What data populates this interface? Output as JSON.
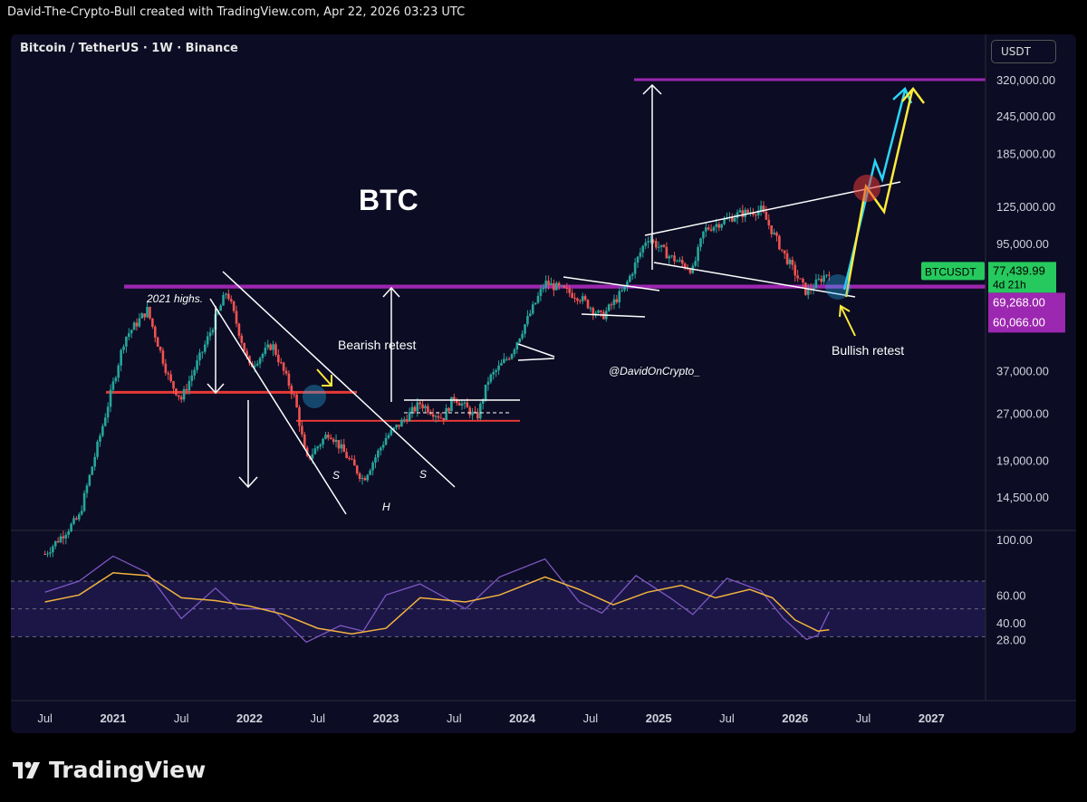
{
  "header": {
    "credit": "David-The-Crypto-Bull created with TradingView.com, Apr 22, 2026 03:23 UTC"
  },
  "chart_header": {
    "symbol": "Bitcoin / TetherUS · 1W · Binance",
    "unit_button": "USDT"
  },
  "footer": {
    "brand": "TradingView"
  },
  "colors": {
    "background": "#0c0c24",
    "purple": "#9c27b0",
    "red": "#e53935",
    "yellow": "#ffeb3b",
    "cyan": "#29d6f5",
    "up": "#26a69a",
    "down": "#ef5350",
    "rsi": "#7e57c2",
    "rsi_ma": "#f2b33d"
  },
  "chart_data": [
    {
      "type": "candlestick",
      "series_name": "BTCUSDT",
      "scale": "log",
      "y_ticks": [
        320000,
        245000,
        185000,
        125000,
        95000,
        37000,
        27000,
        19000,
        14500
      ],
      "y_tick_labels": [
        "320,000.00",
        "245,000.00",
        "185,000.00",
        "125,000.00",
        "95,000.00",
        "37,000.00",
        "27,000.00",
        "19,000.00",
        "14,500.00"
      ],
      "x_tick_labels": [
        "Jul",
        "2021",
        "Jul",
        "2022",
        "Jul",
        "2023",
        "Jul",
        "2024",
        "Jul",
        "2025",
        "Jul",
        "2026",
        "Jul",
        "2027"
      ],
      "current_price": {
        "label": "BTCUSDT",
        "value": "77,439.99",
        "countdown": "4d 21h"
      },
      "levels": [
        {
          "value": 69268,
          "label": "69,268.00"
        },
        {
          "value": 60066,
          "label": "60,066.00"
        },
        {
          "value": 320000
        },
        {
          "value": 31500
        },
        {
          "value": 25500
        }
      ],
      "annotations": {
        "title": "BTC",
        "highs": "2021 highs.",
        "bearish": "Bearish retest",
        "bullish": "Bullish retest",
        "handle": "@DavidOnCrypto_",
        "s1": "S",
        "h": "H",
        "s2": "S"
      },
      "weekly_close_path": [
        [
          "2020-07",
          9500
        ],
        [
          "2020-10",
          12500
        ],
        [
          "2020-12",
          24000
        ],
        [
          "2021-02",
          47000
        ],
        [
          "2021-04",
          58000
        ],
        [
          "2021-06",
          34000
        ],
        [
          "2021-07",
          30000
        ],
        [
          "2021-09",
          44000
        ],
        [
          "2021-11",
          67000
        ],
        [
          "2022-01",
          38000
        ],
        [
          "2022-03",
          45000
        ],
        [
          "2022-05",
          30000
        ],
        [
          "2022-06",
          19000
        ],
        [
          "2022-08",
          23500
        ],
        [
          "2022-11",
          16500
        ],
        [
          "2023-01",
          22500
        ],
        [
          "2023-04",
          29000
        ],
        [
          "2023-06",
          26000
        ],
        [
          "2023-07",
          30500
        ],
        [
          "2023-09",
          26000
        ],
        [
          "2023-10",
          34500
        ],
        [
          "2023-12",
          42000
        ],
        [
          "2024-03",
          71000
        ],
        [
          "2024-06",
          64000
        ],
        [
          "2024-08",
          55000
        ],
        [
          "2024-10",
          68000
        ],
        [
          "2024-12",
          100000
        ],
        [
          "2025-02",
          86000
        ],
        [
          "2025-04",
          78000
        ],
        [
          "2025-05",
          105000
        ],
        [
          "2025-08",
          118000
        ],
        [
          "2025-10",
          122000
        ],
        [
          "2025-12",
          88000
        ],
        [
          "2026-02",
          66000
        ],
        [
          "2026-04",
          77440
        ]
      ]
    },
    {
      "type": "line",
      "name": "RSI",
      "y_ticks": [
        100,
        60,
        40,
        28
      ],
      "y_tick_labels": [
        "100.00",
        "60.00",
        "40.00",
        "28.00"
      ],
      "bands": [
        70,
        50,
        30
      ],
      "rsi_path": [
        [
          "2020-07",
          62
        ],
        [
          "2020-10",
          70
        ],
        [
          "2021-01",
          88
        ],
        [
          "2021-04",
          76
        ],
        [
          "2021-07",
          43
        ],
        [
          "2021-10",
          65
        ],
        [
          "2021-12",
          50
        ],
        [
          "2022-03",
          50
        ],
        [
          "2022-06",
          26
        ],
        [
          "2022-09",
          38
        ],
        [
          "2022-11",
          34
        ],
        [
          "2023-01",
          60
        ],
        [
          "2023-04",
          68
        ],
        [
          "2023-08",
          50
        ],
        [
          "2023-11",
          73
        ],
        [
          "2024-03",
          86
        ],
        [
          "2024-06",
          55
        ],
        [
          "2024-08",
          47
        ],
        [
          "2024-11",
          74
        ],
        [
          "2025-02",
          58
        ],
        [
          "2025-04",
          46
        ],
        [
          "2025-07",
          72
        ],
        [
          "2025-10",
          63
        ],
        [
          "2025-12",
          43
        ],
        [
          "2026-02",
          28
        ],
        [
          "2026-03",
          31
        ],
        [
          "2026-04",
          48
        ]
      ],
      "ma_path": [
        [
          "2020-07",
          55
        ],
        [
          "2020-10",
          60
        ],
        [
          "2021-01",
          76
        ],
        [
          "2021-04",
          74
        ],
        [
          "2021-07",
          58
        ],
        [
          "2021-10",
          56
        ],
        [
          "2022-01",
          52
        ],
        [
          "2022-04",
          46
        ],
        [
          "2022-07",
          36
        ],
        [
          "2022-10",
          32
        ],
        [
          "2023-01",
          36
        ],
        [
          "2023-04",
          58
        ],
        [
          "2023-08",
          55
        ],
        [
          "2023-11",
          60
        ],
        [
          "2024-03",
          73
        ],
        [
          "2024-06",
          64
        ],
        [
          "2024-09",
          53
        ],
        [
          "2024-12",
          62
        ],
        [
          "2025-03",
          67
        ],
        [
          "2025-06",
          58
        ],
        [
          "2025-09",
          64
        ],
        [
          "2025-11",
          58
        ],
        [
          "2026-01",
          42
        ],
        [
          "2026-03",
          34
        ],
        [
          "2026-04",
          35
        ]
      ]
    }
  ]
}
